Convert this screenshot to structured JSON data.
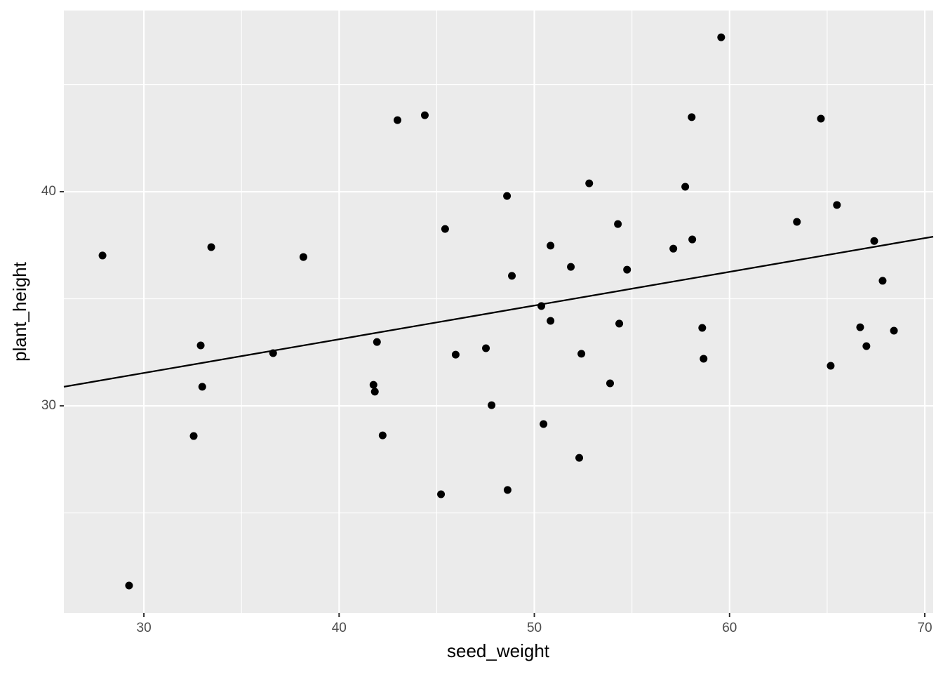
{
  "chart_data": {
    "type": "scatter",
    "x_label": "seed_weight",
    "y_label": "plant_height",
    "xlim": [
      25.9,
      70.43
    ],
    "ylim": [
      20.33,
      48.46
    ],
    "xticks": [
      30,
      40,
      50,
      60,
      70
    ],
    "yticks": [
      30,
      40
    ],
    "xminor": [
      35,
      45,
      55,
      65
    ],
    "yminor": [
      25,
      35,
      45
    ],
    "grid": true,
    "color": "#000000",
    "series": [
      {
        "color": "#000000",
        "x": [
          27.88,
          29.24,
          32.91,
          32.99,
          32.55,
          33.45,
          36.62,
          38.17,
          41.94,
          41.76,
          41.83,
          42.23,
          42.99,
          44.39,
          45.43,
          45.22,
          45.97,
          47.52,
          47.81,
          48.6,
          48.63,
          48.85,
          50.36,
          50.47,
          50.83,
          50.83,
          51.87,
          52.3,
          52.41,
          52.81,
          53.88,
          54.28,
          54.35,
          54.75,
          57.12,
          57.73,
          58.06,
          58.09,
          58.6,
          58.67,
          59.57,
          63.45,
          64.68,
          65.18,
          65.5,
          66.69,
          67.01,
          67.41,
          67.84,
          68.42
        ],
        "values": [
          37.02,
          21.61,
          32.82,
          30.89,
          28.59,
          37.41,
          32.46,
          36.95,
          32.98,
          30.98,
          30.66,
          28.62,
          43.34,
          43.57,
          38.26,
          25.87,
          32.39,
          32.69,
          30.03,
          39.8,
          26.07,
          36.07,
          34.66,
          29.15,
          37.48,
          33.97,
          36.49,
          27.57,
          32.43,
          40.39,
          31.05,
          38.49,
          33.84,
          36.36,
          37.34,
          40.23,
          43.48,
          37.77,
          33.64,
          32.2,
          47.21,
          38.59,
          43.41,
          31.87,
          39.38,
          33.67,
          32.79,
          37.7,
          35.84,
          33.51
        ]
      }
    ],
    "trend_line": {
      "color": "#000000",
      "x": [
        25.9,
        70.43
      ],
      "values": [
        30.89,
        37.9
      ]
    }
  }
}
